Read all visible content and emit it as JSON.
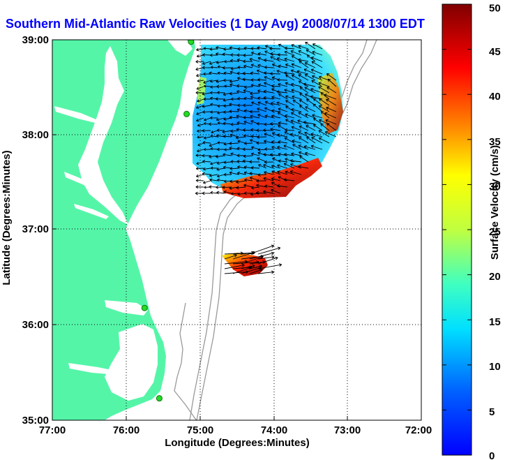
{
  "title": "Southern Mid-Atlantic Raw Velocities (1 Day Avg) 2008/07/14 1300 EDT",
  "map": {
    "xlabel": "Longitude (Degrees:Minutes)",
    "ylabel": "Latitude (Degrees:Minutes)",
    "x_ticks": [
      "77:00",
      "76:00",
      "75:00",
      "74:00",
      "73:00",
      "72:00"
    ],
    "y_ticks": [
      "39:00",
      "38:00",
      "37:00",
      "36:00",
      "35:00"
    ],
    "lon_range": [
      -77,
      -72
    ],
    "lat_range": [
      35,
      39
    ],
    "grid": true,
    "land_color": "#55f5a8",
    "bathymetry_color": "#999999"
  },
  "colorbar": {
    "label": "Surface Velocity (cm/s)",
    "ticks": [
      "50",
      "45",
      "40",
      "35",
      "30",
      "25",
      "20",
      "15",
      "10",
      "5",
      "0"
    ],
    "range": [
      0,
      50
    ],
    "colors": [
      "#800000",
      "#ff0000",
      "#ff8000",
      "#ffff00",
      "#80ff80",
      "#00ffff",
      "#0080ff",
      "#0000ff"
    ]
  },
  "sites": [
    {
      "lon": -75.12,
      "lat": 38.98
    },
    {
      "lon": -75.18,
      "lat": 38.22
    },
    {
      "lon": -75.75,
      "lat": 36.18
    },
    {
      "lon": -75.55,
      "lat": 35.23
    }
  ]
}
